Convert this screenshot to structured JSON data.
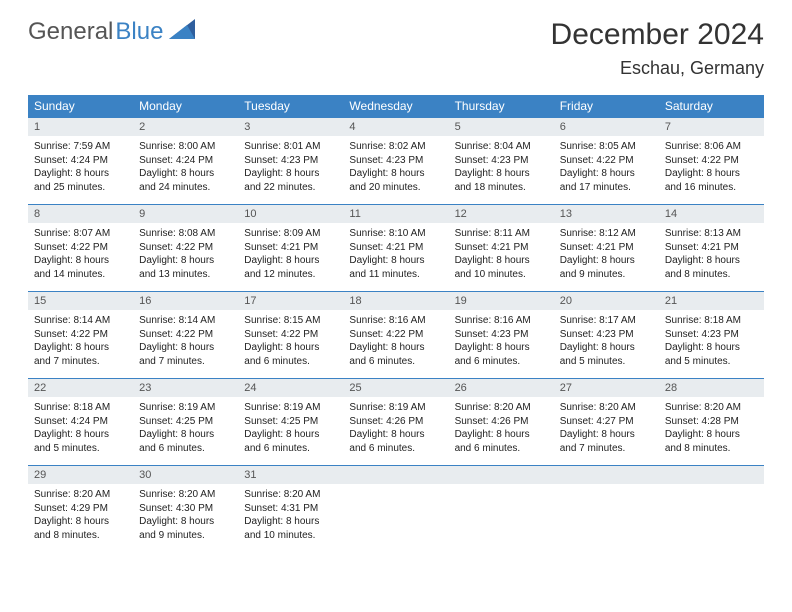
{
  "brand": {
    "part1": "General",
    "part2": "Blue"
  },
  "title": "December 2024",
  "location": "Eschau, Germany",
  "colors": {
    "header_bg": "#3b82c4",
    "header_text": "#ffffff",
    "daynum_bg": "#e8ecef",
    "border": "#3b82c4",
    "brand_blue": "#3b82c4",
    "brand_gray": "#555555"
  },
  "weekdays": [
    "Sunday",
    "Monday",
    "Tuesday",
    "Wednesday",
    "Thursday",
    "Friday",
    "Saturday"
  ],
  "weeks": [
    [
      {
        "num": "1",
        "sunrise": "Sunrise: 7:59 AM",
        "sunset": "Sunset: 4:24 PM",
        "daylight": "Daylight: 8 hours and 25 minutes."
      },
      {
        "num": "2",
        "sunrise": "Sunrise: 8:00 AM",
        "sunset": "Sunset: 4:24 PM",
        "daylight": "Daylight: 8 hours and 24 minutes."
      },
      {
        "num": "3",
        "sunrise": "Sunrise: 8:01 AM",
        "sunset": "Sunset: 4:23 PM",
        "daylight": "Daylight: 8 hours and 22 minutes."
      },
      {
        "num": "4",
        "sunrise": "Sunrise: 8:02 AM",
        "sunset": "Sunset: 4:23 PM",
        "daylight": "Daylight: 8 hours and 20 minutes."
      },
      {
        "num": "5",
        "sunrise": "Sunrise: 8:04 AM",
        "sunset": "Sunset: 4:23 PM",
        "daylight": "Daylight: 8 hours and 18 minutes."
      },
      {
        "num": "6",
        "sunrise": "Sunrise: 8:05 AM",
        "sunset": "Sunset: 4:22 PM",
        "daylight": "Daylight: 8 hours and 17 minutes."
      },
      {
        "num": "7",
        "sunrise": "Sunrise: 8:06 AM",
        "sunset": "Sunset: 4:22 PM",
        "daylight": "Daylight: 8 hours and 16 minutes."
      }
    ],
    [
      {
        "num": "8",
        "sunrise": "Sunrise: 8:07 AM",
        "sunset": "Sunset: 4:22 PM",
        "daylight": "Daylight: 8 hours and 14 minutes."
      },
      {
        "num": "9",
        "sunrise": "Sunrise: 8:08 AM",
        "sunset": "Sunset: 4:22 PM",
        "daylight": "Daylight: 8 hours and 13 minutes."
      },
      {
        "num": "10",
        "sunrise": "Sunrise: 8:09 AM",
        "sunset": "Sunset: 4:21 PM",
        "daylight": "Daylight: 8 hours and 12 minutes."
      },
      {
        "num": "11",
        "sunrise": "Sunrise: 8:10 AM",
        "sunset": "Sunset: 4:21 PM",
        "daylight": "Daylight: 8 hours and 11 minutes."
      },
      {
        "num": "12",
        "sunrise": "Sunrise: 8:11 AM",
        "sunset": "Sunset: 4:21 PM",
        "daylight": "Daylight: 8 hours and 10 minutes."
      },
      {
        "num": "13",
        "sunrise": "Sunrise: 8:12 AM",
        "sunset": "Sunset: 4:21 PM",
        "daylight": "Daylight: 8 hours and 9 minutes."
      },
      {
        "num": "14",
        "sunrise": "Sunrise: 8:13 AM",
        "sunset": "Sunset: 4:21 PM",
        "daylight": "Daylight: 8 hours and 8 minutes."
      }
    ],
    [
      {
        "num": "15",
        "sunrise": "Sunrise: 8:14 AM",
        "sunset": "Sunset: 4:22 PM",
        "daylight": "Daylight: 8 hours and 7 minutes."
      },
      {
        "num": "16",
        "sunrise": "Sunrise: 8:14 AM",
        "sunset": "Sunset: 4:22 PM",
        "daylight": "Daylight: 8 hours and 7 minutes."
      },
      {
        "num": "17",
        "sunrise": "Sunrise: 8:15 AM",
        "sunset": "Sunset: 4:22 PM",
        "daylight": "Daylight: 8 hours and 6 minutes."
      },
      {
        "num": "18",
        "sunrise": "Sunrise: 8:16 AM",
        "sunset": "Sunset: 4:22 PM",
        "daylight": "Daylight: 8 hours and 6 minutes."
      },
      {
        "num": "19",
        "sunrise": "Sunrise: 8:16 AM",
        "sunset": "Sunset: 4:23 PM",
        "daylight": "Daylight: 8 hours and 6 minutes."
      },
      {
        "num": "20",
        "sunrise": "Sunrise: 8:17 AM",
        "sunset": "Sunset: 4:23 PM",
        "daylight": "Daylight: 8 hours and 5 minutes."
      },
      {
        "num": "21",
        "sunrise": "Sunrise: 8:18 AM",
        "sunset": "Sunset: 4:23 PM",
        "daylight": "Daylight: 8 hours and 5 minutes."
      }
    ],
    [
      {
        "num": "22",
        "sunrise": "Sunrise: 8:18 AM",
        "sunset": "Sunset: 4:24 PM",
        "daylight": "Daylight: 8 hours and 5 minutes."
      },
      {
        "num": "23",
        "sunrise": "Sunrise: 8:19 AM",
        "sunset": "Sunset: 4:25 PM",
        "daylight": "Daylight: 8 hours and 6 minutes."
      },
      {
        "num": "24",
        "sunrise": "Sunrise: 8:19 AM",
        "sunset": "Sunset: 4:25 PM",
        "daylight": "Daylight: 8 hours and 6 minutes."
      },
      {
        "num": "25",
        "sunrise": "Sunrise: 8:19 AM",
        "sunset": "Sunset: 4:26 PM",
        "daylight": "Daylight: 8 hours and 6 minutes."
      },
      {
        "num": "26",
        "sunrise": "Sunrise: 8:20 AM",
        "sunset": "Sunset: 4:26 PM",
        "daylight": "Daylight: 8 hours and 6 minutes."
      },
      {
        "num": "27",
        "sunrise": "Sunrise: 8:20 AM",
        "sunset": "Sunset: 4:27 PM",
        "daylight": "Daylight: 8 hours and 7 minutes."
      },
      {
        "num": "28",
        "sunrise": "Sunrise: 8:20 AM",
        "sunset": "Sunset: 4:28 PM",
        "daylight": "Daylight: 8 hours and 8 minutes."
      }
    ],
    [
      {
        "num": "29",
        "sunrise": "Sunrise: 8:20 AM",
        "sunset": "Sunset: 4:29 PM",
        "daylight": "Daylight: 8 hours and 8 minutes."
      },
      {
        "num": "30",
        "sunrise": "Sunrise: 8:20 AM",
        "sunset": "Sunset: 4:30 PM",
        "daylight": "Daylight: 8 hours and 9 minutes."
      },
      {
        "num": "31",
        "sunrise": "Sunrise: 8:20 AM",
        "sunset": "Sunset: 4:31 PM",
        "daylight": "Daylight: 8 hours and 10 minutes."
      },
      null,
      null,
      null,
      null
    ]
  ]
}
